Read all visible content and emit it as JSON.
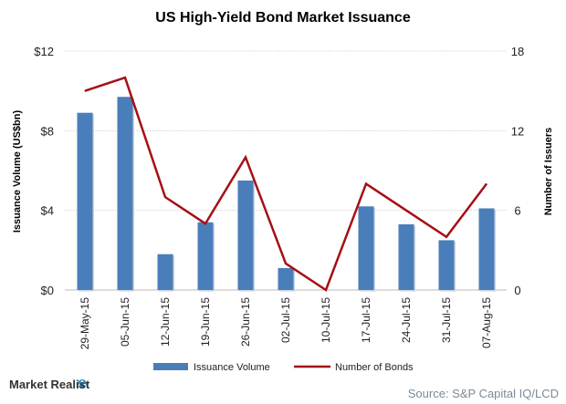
{
  "chart_data": {
    "type": "bar+line",
    "title": "US High-Yield Bond Market Issuance",
    "categories": [
      "29-May-15",
      "05-Jun-15",
      "12-Jun-15",
      "19-Jun-15",
      "26-Jun-15",
      "02-Jul-15",
      "10-Jul-15",
      "17-Jul-15",
      "24-Jul-15",
      "31-Jul-15",
      "07-Aug-15"
    ],
    "series": [
      {
        "name": "Issuance Volume",
        "type": "bar",
        "axis": "left",
        "color": "#4a7ebb",
        "values": [
          8.9,
          9.7,
          1.8,
          3.4,
          5.5,
          1.1,
          0,
          4.2,
          3.3,
          2.5,
          4.1
        ]
      },
      {
        "name": "Number of Bonds",
        "type": "line",
        "axis": "right",
        "color": "#a50f15",
        "values": [
          15,
          16,
          7,
          5,
          10,
          2,
          0,
          8,
          6,
          4,
          8
        ]
      }
    ],
    "ylabel": "Issuance Volume (US$bn)",
    "ylabel_right": "Number of Issuers",
    "ylim": [
      0,
      12
    ],
    "ylim_right": [
      0,
      18
    ],
    "yticks": [
      "$0",
      "$4",
      "$8",
      "$12"
    ],
    "yticks_right": [
      "0",
      "6",
      "12",
      "18"
    ],
    "grid": true,
    "legend_placement": "bottom"
  },
  "footer": {
    "logo": "Market Realist",
    "source": "Source: S&P Capital IQ/LCD"
  }
}
